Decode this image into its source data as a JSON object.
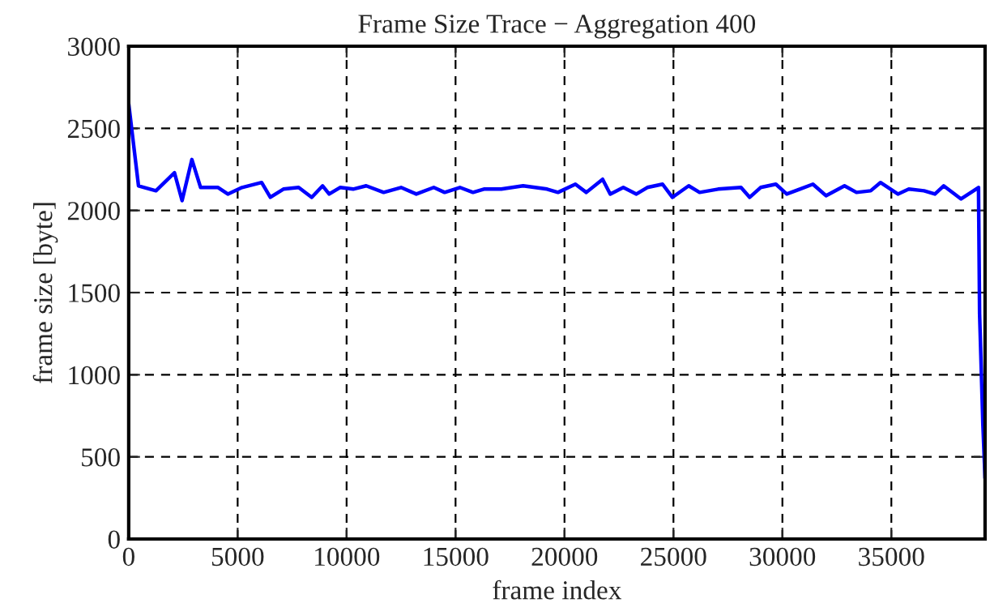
{
  "chart_data": {
    "type": "line",
    "title": "Frame Size Trace − Aggregation 400",
    "xlabel": "frame index",
    "ylabel": "frame size [byte]",
    "xlim": [
      0,
      39300
    ],
    "xticks": [
      0,
      5000,
      10000,
      15000,
      20000,
      25000,
      30000,
      35000
    ],
    "ylim": [
      0,
      3000
    ],
    "yticks": [
      0,
      500,
      1000,
      1500,
      2000,
      2500,
      3000
    ],
    "grid": true,
    "line_style": "solid",
    "series": [
      {
        "color": "#0000ff",
        "x": [
          0,
          450,
          1250,
          2100,
          2450,
          2900,
          3300,
          4100,
          4550,
          5200,
          6100,
          6500,
          7100,
          7800,
          8400,
          8900,
          9200,
          9700,
          10300,
          10900,
          11700,
          12500,
          13200,
          14000,
          14500,
          15200,
          15800,
          16300,
          17100,
          18100,
          19200,
          19700,
          20500,
          21000,
          21750,
          22100,
          22700,
          23300,
          23800,
          24500,
          24950,
          25700,
          26200,
          27050,
          28100,
          28500,
          29000,
          29700,
          30200,
          30800,
          31400,
          32000,
          32850,
          33400,
          34050,
          34500,
          35300,
          35800,
          36500,
          37000,
          37400,
          38200,
          39000,
          39050,
          39200,
          39300
        ],
        "values": [
          2650,
          2150,
          2120,
          2230,
          2060,
          2310,
          2140,
          2140,
          2100,
          2140,
          2170,
          2080,
          2130,
          2140,
          2080,
          2150,
          2100,
          2140,
          2130,
          2150,
          2110,
          2140,
          2100,
          2140,
          2110,
          2140,
          2110,
          2130,
          2130,
          2150,
          2130,
          2110,
          2160,
          2110,
          2190,
          2100,
          2140,
          2100,
          2140,
          2160,
          2080,
          2150,
          2110,
          2130,
          2140,
          2080,
          2140,
          2160,
          2100,
          2130,
          2160,
          2090,
          2150,
          2110,
          2120,
          2170,
          2100,
          2130,
          2120,
          2100,
          2150,
          2070,
          2140,
          1370,
          700,
          370
        ]
      }
    ]
  }
}
